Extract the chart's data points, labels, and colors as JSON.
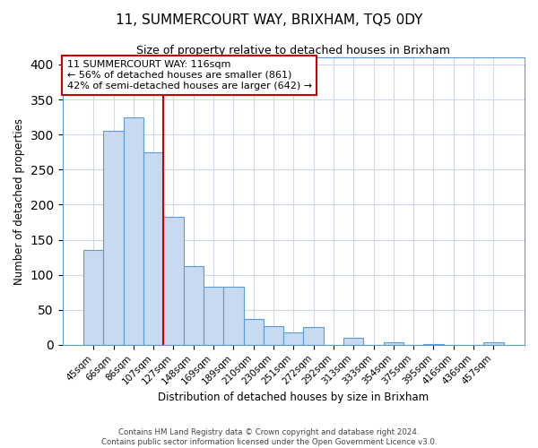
{
  "title": "11, SUMMERCOURT WAY, BRIXHAM, TQ5 0DY",
  "subtitle": "Size of property relative to detached houses in Brixham",
  "xlabel": "Distribution of detached houses by size in Brixham",
  "ylabel": "Number of detached properties",
  "bar_labels": [
    "45sqm",
    "66sqm",
    "86sqm",
    "107sqm",
    "127sqm",
    "148sqm",
    "169sqm",
    "189sqm",
    "210sqm",
    "230sqm",
    "251sqm",
    "272sqm",
    "292sqm",
    "313sqm",
    "333sqm",
    "354sqm",
    "375sqm",
    "395sqm",
    "416sqm",
    "436sqm",
    "457sqm"
  ],
  "bar_heights": [
    135,
    305,
    325,
    275,
    183,
    112,
    83,
    83,
    37,
    27,
    18,
    25,
    0,
    10,
    0,
    4,
    0,
    1,
    0,
    0,
    4
  ],
  "bar_color": "#c8daf0",
  "bar_edge_color": "#5b9bd5",
  "vline_index": 3.5,
  "vline_color": "#cc0000",
  "annotation_text": "11 SUMMERCOURT WAY: 116sqm\n← 56% of detached houses are smaller (861)\n42% of semi-detached houses are larger (642) →",
  "annotation_box_edge": "#cc0000",
  "ylim": [
    0,
    410
  ],
  "yticks": [
    0,
    50,
    100,
    150,
    200,
    250,
    300,
    350,
    400
  ],
  "footer_line1": "Contains HM Land Registry data © Crown copyright and database right 2024.",
  "footer_line2": "Contains public sector information licensed under the Open Government Licence v3.0.",
  "bg_color": "#ffffff",
  "grid_color": "#d0d8e8"
}
